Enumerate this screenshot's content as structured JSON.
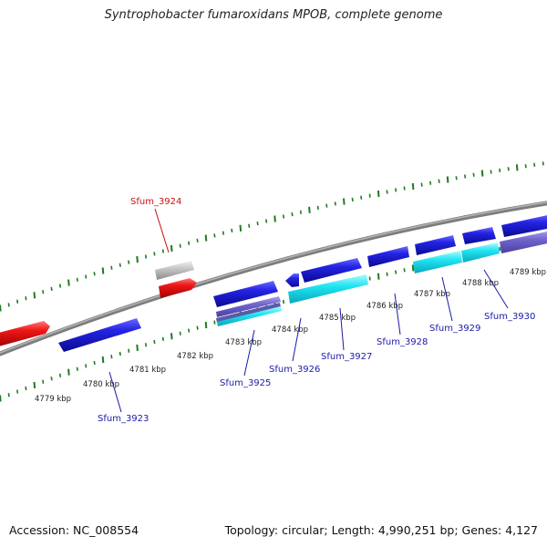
{
  "title": "Syntrophobacter fumaroxidans MPOB, complete genome",
  "footer": {
    "accession": "Accession: NC_008554",
    "summary": "Topology: circular; Length: 4,990,251 bp; Genes: 4,127"
  },
  "colors": {
    "background": "#ffffff",
    "backbone": "#7d7d7d",
    "tick": "#1f7a1f",
    "gene_blue": "#1414d8",
    "gene_red": "#e01010",
    "gene_gray": "#c8c8c8",
    "gene_cyan": "#19e0ef",
    "gene_lavender": "#6a5fc8",
    "label_blue": "#1a1aa8",
    "label_red": "#cc1111"
  },
  "scale_ticks": [
    "4779 kbp",
    "4780 kbp",
    "4781 kbp",
    "4782 kbp",
    "4783 kbp",
    "4784 kbp",
    "4785 kbp",
    "4786 kbp",
    "4787 kbp",
    "4788 kbp",
    "4789 kbp"
  ],
  "gene_labels": [
    {
      "text": "Sfum_3924",
      "color": "red"
    },
    {
      "text": "Sfum_3923",
      "color": "blue"
    },
    {
      "text": "Sfum_3925",
      "color": "blue"
    },
    {
      "text": "Sfum_3926",
      "color": "blue"
    },
    {
      "text": "Sfum_3927",
      "color": "blue"
    },
    {
      "text": "Sfum_3928",
      "color": "blue"
    },
    {
      "text": "Sfum_3929",
      "color": "blue"
    },
    {
      "text": "Sfum_3930",
      "color": "blue"
    }
  ]
}
